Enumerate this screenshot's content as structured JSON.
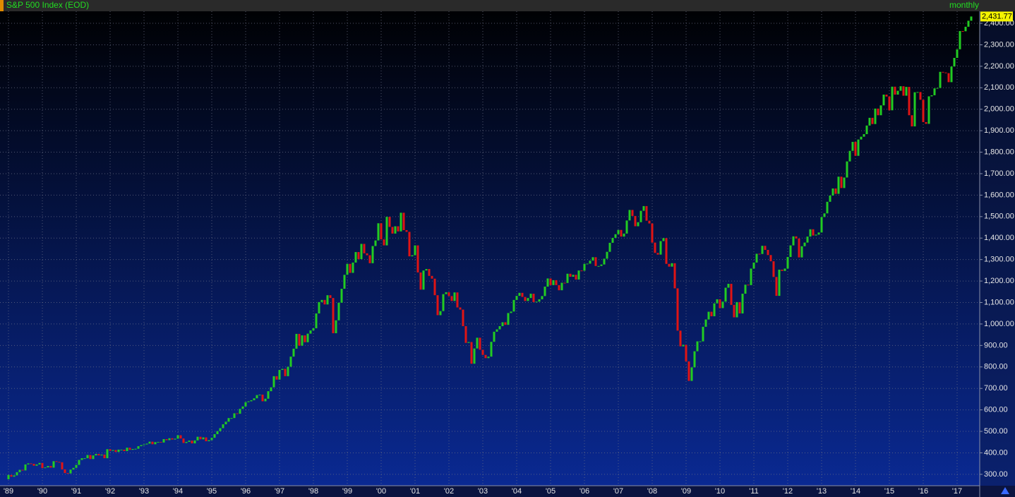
{
  "chart_data": {
    "type": "candlestick",
    "title": "S&P 500 Index (EOD)",
    "period": "monthly",
    "categories": [
      "'89",
      null,
      null,
      null,
      null,
      null,
      null,
      null,
      null,
      null,
      null,
      null,
      "'90",
      null,
      null,
      null,
      null,
      null,
      null,
      null,
      null,
      null,
      null,
      null,
      "'91",
      null,
      null,
      null,
      null,
      null,
      null,
      null,
      null,
      null,
      null,
      null,
      "'92",
      null,
      null,
      null,
      null,
      null,
      null,
      null,
      null,
      null,
      null,
      null,
      "'93",
      null,
      null,
      null,
      null,
      null,
      null,
      null,
      null,
      null,
      null,
      null,
      "'94",
      null,
      null,
      null,
      null,
      null,
      null,
      null,
      null,
      null,
      null,
      null,
      "'95",
      null,
      null,
      null,
      null,
      null,
      null,
      null,
      null,
      null,
      null,
      null,
      "'96",
      null,
      null,
      null,
      null,
      null,
      null,
      null,
      null,
      null,
      null,
      null,
      "'97",
      null,
      null,
      null,
      null,
      null,
      null,
      null,
      null,
      null,
      null,
      null,
      "'98",
      null,
      null,
      null,
      null,
      null,
      null,
      null,
      null,
      null,
      null,
      null,
      "'99",
      null,
      null,
      null,
      null,
      null,
      null,
      null,
      null,
      null,
      null,
      null,
      "'00",
      null,
      null,
      null,
      null,
      null,
      null,
      null,
      null,
      null,
      null,
      null,
      "'01",
      null,
      null,
      null,
      null,
      null,
      null,
      null,
      null,
      null,
      null,
      null,
      "'02",
      null,
      null,
      null,
      null,
      null,
      null,
      null,
      null,
      null,
      null,
      null,
      "'03",
      null,
      null,
      null,
      null,
      null,
      null,
      null,
      null,
      null,
      null,
      null,
      "'04",
      null,
      null,
      null,
      null,
      null,
      null,
      null,
      null,
      null,
      null,
      null,
      "'05",
      null,
      null,
      null,
      null,
      null,
      null,
      null,
      null,
      null,
      null,
      null,
      "'06",
      null,
      null,
      null,
      null,
      null,
      null,
      null,
      null,
      null,
      null,
      null,
      "'07",
      null,
      null,
      null,
      null,
      null,
      null,
      null,
      null,
      null,
      null,
      null,
      "'08",
      null,
      null,
      null,
      null,
      null,
      null,
      null,
      null,
      null,
      null,
      null,
      "'09",
      null,
      null,
      null,
      null,
      null,
      null,
      null,
      null,
      null,
      null,
      null,
      "'10",
      null,
      null,
      null,
      null,
      null,
      null,
      null,
      null,
      null,
      null,
      null,
      "'11",
      null,
      null,
      null,
      null,
      null,
      null,
      null,
      null,
      null,
      null,
      null,
      "'12",
      null,
      null,
      null,
      null,
      null,
      null,
      null,
      null,
      null,
      null,
      null,
      "'13",
      null,
      null,
      null,
      null,
      null,
      null,
      null,
      null,
      null,
      null,
      null,
      "'14",
      null,
      null,
      null,
      null,
      null,
      null,
      null,
      null,
      null,
      null,
      null,
      "'15",
      null,
      null,
      null,
      null,
      null,
      null,
      null,
      null,
      null,
      null,
      null,
      "'16",
      null,
      null,
      null,
      null,
      null,
      null,
      null,
      null,
      null,
      null,
      null,
      "'17",
      null,
      null,
      null,
      null,
      null
    ],
    "open": [
      277,
      297,
      289,
      295,
      310,
      321,
      318,
      346,
      351,
      349,
      340,
      346,
      353,
      329,
      332,
      339,
      331,
      361,
      358,
      356,
      323,
      306,
      304,
      322,
      330,
      344,
      367,
      375,
      375,
      390,
      371,
      388,
      395,
      388,
      392,
      375,
      417,
      409,
      413,
      404,
      415,
      415,
      408,
      424,
      414,
      418,
      419,
      431,
      436,
      439,
      443,
      452,
      440,
      450,
      451,
      448,
      464,
      459,
      468,
      462,
      466,
      482,
      467,
      446,
      451,
      457,
      444,
      458,
      475,
      463,
      472,
      454,
      459,
      470,
      487,
      501,
      515,
      533,
      545,
      562,
      562,
      584,
      582,
      605,
      616,
      636,
      640,
      645,
      654,
      669,
      671,
      640,
      652,
      687,
      705,
      757,
      741,
      786,
      791,
      757,
      801,
      848,
      885,
      954,
      899,
      947,
      915,
      955,
      970,
      980,
      1049,
      1102,
      1112,
      1091,
      1134,
      1121,
      957,
      1017,
      1099,
      1164,
      1229,
      1280,
      1238,
      1286,
      1335,
      1302,
      1373,
      1329,
      1320,
      1283,
      1363,
      1389,
      1469,
      1394,
      1366,
      1499,
      1452,
      1421,
      1455,
      1431,
      1518,
      1437,
      1429,
      1315,
      1320,
      1366,
      1240,
      1160,
      1249,
      1256,
      1224,
      1211,
      1134,
      1041,
      1060,
      1139,
      1148,
      1130,
      1107,
      1147,
      1077,
      1067,
      990,
      912,
      916,
      815,
      886,
      936,
      880,
      856,
      841,
      848,
      917,
      964,
      975,
      990,
      1008,
      996,
      1051,
      1058,
      1112,
      1131,
      1145,
      1126,
      1107,
      1121,
      1141,
      1102,
      1104,
      1115,
      1130,
      1174,
      1212,
      1181,
      1204,
      1181,
      1157,
      1192,
      1191,
      1234,
      1220,
      1229,
      1207,
      1249,
      1248,
      1280,
      1281,
      1295,
      1311,
      1270,
      1270,
      1277,
      1304,
      1336,
      1378,
      1401,
      1418,
      1438,
      1407,
      1421,
      1482,
      1531,
      1503,
      1455,
      1474,
      1527,
      1549,
      1481,
      1468,
      1379,
      1331,
      1323,
      1386,
      1400,
      1280,
      1267,
      1283,
      1166,
      969,
      896,
      903,
      826,
      735,
      798,
      873,
      919,
      919,
      987,
      1021,
      1057,
      1036,
      1096,
      1115,
      1074,
      1104,
      1169,
      1187,
      1089,
      1031,
      1102,
      1049,
      1141,
      1183,
      1181,
      1258,
      1286,
      1327,
      1326,
      1364,
      1345,
      1321,
      1292,
      1219,
      1131,
      1253,
      1247,
      1258,
      1312,
      1366,
      1408,
      1398,
      1310,
      1362,
      1379,
      1407,
      1441,
      1412,
      1416,
      1426,
      1498,
      1515,
      1569,
      1598,
      1631,
      1606,
      1686,
      1633,
      1682,
      1757,
      1806,
      1848,
      1783,
      1859,
      1872,
      1884,
      1924,
      1960,
      1931,
      2003,
      1972,
      2018,
      2068,
      2059,
      1995,
      2105,
      2068,
      2086,
      2107,
      2063,
      2104,
      1972,
      1920,
      2079,
      2080,
      2044,
      1940,
      1932,
      2060,
      2065,
      2097,
      2099,
      2174,
      2171,
      2168,
      2126,
      2199,
      2239,
      2279,
      2364,
      2363,
      2384,
      2412
    ],
    "close": [
      297,
      289,
      295,
      310,
      321,
      318,
      346,
      351,
      349,
      340,
      346,
      353,
      329,
      332,
      339,
      331,
      361,
      358,
      356,
      323,
      306,
      304,
      322,
      330,
      344,
      367,
      375,
      375,
      390,
      371,
      388,
      395,
      388,
      392,
      375,
      417,
      409,
      413,
      404,
      415,
      415,
      408,
      424,
      414,
      418,
      419,
      431,
      436,
      439,
      443,
      452,
      440,
      450,
      451,
      448,
      464,
      459,
      468,
      462,
      466,
      482,
      467,
      446,
      451,
      457,
      444,
      458,
      475,
      463,
      472,
      454,
      459,
      470,
      487,
      501,
      515,
      533,
      545,
      562,
      562,
      584,
      582,
      605,
      616,
      636,
      640,
      645,
      654,
      669,
      671,
      640,
      652,
      687,
      705,
      757,
      741,
      786,
      791,
      757,
      801,
      848,
      885,
      954,
      899,
      947,
      915,
      955,
      970,
      980,
      1049,
      1102,
      1112,
      1091,
      1134,
      1121,
      957,
      1017,
      1099,
      1164,
      1229,
      1280,
      1238,
      1286,
      1335,
      1302,
      1373,
      1329,
      1320,
      1283,
      1363,
      1389,
      1469,
      1394,
      1366,
      1499,
      1452,
      1421,
      1455,
      1431,
      1518,
      1437,
      1429,
      1315,
      1320,
      1366,
      1240,
      1160,
      1249,
      1256,
      1224,
      1211,
      1134,
      1041,
      1060,
      1139,
      1148,
      1130,
      1107,
      1147,
      1077,
      1067,
      990,
      912,
      916,
      815,
      886,
      936,
      880,
      856,
      841,
      848,
      917,
      964,
      975,
      990,
      1008,
      996,
      1051,
      1058,
      1112,
      1131,
      1145,
      1126,
      1107,
      1121,
      1141,
      1102,
      1104,
      1115,
      1130,
      1174,
      1212,
      1181,
      1204,
      1181,
      1157,
      1192,
      1191,
      1234,
      1220,
      1229,
      1207,
      1249,
      1248,
      1280,
      1281,
      1295,
      1311,
      1270,
      1270,
      1277,
      1304,
      1336,
      1378,
      1401,
      1418,
      1438,
      1407,
      1421,
      1482,
      1531,
      1503,
      1455,
      1474,
      1527,
      1549,
      1481,
      1468,
      1379,
      1331,
      1323,
      1386,
      1400,
      1280,
      1267,
      1283,
      1166,
      969,
      896,
      903,
      826,
      735,
      798,
      873,
      919,
      919,
      987,
      1021,
      1057,
      1036,
      1096,
      1115,
      1074,
      1104,
      1169,
      1187,
      1089,
      1031,
      1102,
      1049,
      1141,
      1183,
      1181,
      1258,
      1286,
      1327,
      1326,
      1364,
      1345,
      1321,
      1292,
      1219,
      1131,
      1253,
      1247,
      1258,
      1312,
      1366,
      1408,
      1398,
      1310,
      1362,
      1379,
      1407,
      1441,
      1412,
      1416,
      1426,
      1498,
      1515,
      1569,
      1598,
      1631,
      1606,
      1686,
      1633,
      1682,
      1757,
      1806,
      1848,
      1783,
      1859,
      1872,
      1884,
      1924,
      1960,
      1931,
      2003,
      1972,
      2018,
      2068,
      2059,
      1995,
      2105,
      2068,
      2086,
      2107,
      2063,
      2104,
      1972,
      1920,
      2079,
      2080,
      2044,
      1940,
      1932,
      2060,
      2065,
      2097,
      2099,
      2174,
      2171,
      2168,
      2126,
      2199,
      2239,
      2279,
      2364,
      2363,
      2384,
      2412,
      2431.77
    ],
    "up_color": "#22cc22",
    "down_color": "#e01414",
    "ylim": [
      247,
      2456
    ],
    "yticks": [
      {
        "value": 300,
        "label": "300.00"
      },
      {
        "value": 400,
        "label": "400.00"
      },
      {
        "value": 500,
        "label": "500.00"
      },
      {
        "value": 600,
        "label": "600.00"
      },
      {
        "value": 700,
        "label": "700.00"
      },
      {
        "value": 800,
        "label": "800.00"
      },
      {
        "value": 900,
        "label": "900.00"
      },
      {
        "value": 1000,
        "label": "1,000.00"
      },
      {
        "value": 1100,
        "label": "1,100.00"
      },
      {
        "value": 1200,
        "label": "1,200.00"
      },
      {
        "value": 1300,
        "label": "1,300.00"
      },
      {
        "value": 1400,
        "label": "1,400.00"
      },
      {
        "value": 1500,
        "label": "1,500.00"
      },
      {
        "value": 1600,
        "label": "1,600.00"
      },
      {
        "value": 1700,
        "label": "1,700.00"
      },
      {
        "value": 1800,
        "label": "1,800.00"
      },
      {
        "value": 1900,
        "label": "1,900.00"
      },
      {
        "value": 2000,
        "label": "2,000.00"
      },
      {
        "value": 2100,
        "label": "2,100.00"
      },
      {
        "value": 2200,
        "label": "2,200.00"
      },
      {
        "value": 2300,
        "label": "2,300.00"
      },
      {
        "value": 2400,
        "label": "2,400.00"
      }
    ],
    "grid": true,
    "last_price": {
      "value": 2431.77,
      "label": "2,431.77"
    }
  }
}
